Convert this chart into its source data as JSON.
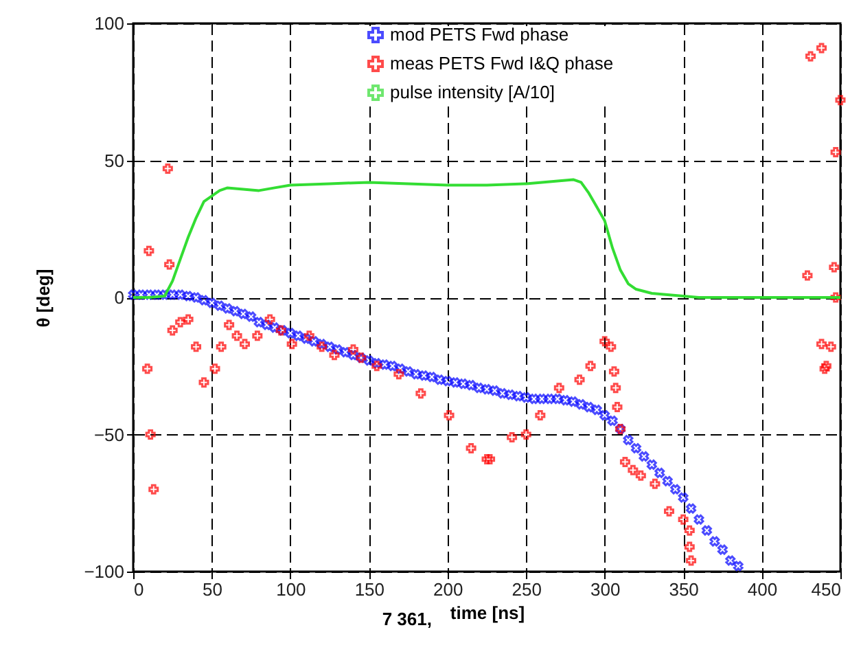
{
  "chart_data": {
    "type": "scatter",
    "xlabel": "time [ns]",
    "ylabel": "θ [deg]",
    "annotations": [
      "7    361,"
    ],
    "xlim": [
      0,
      450
    ],
    "xticks": [
      0,
      50,
      100,
      150,
      200,
      250,
      300,
      350,
      400,
      450
    ],
    "ylim": [
      -100,
      100
    ],
    "yticks": [
      -100,
      -50,
      0,
      50,
      100
    ],
    "grid": true,
    "legend": "top right",
    "series": [
      {
        "name": "mod PETS Fwd phase",
        "marker": "cross",
        "color": "#0000ff",
        "x": [
          0,
          5,
          10,
          15,
          20,
          25,
          30,
          35,
          40,
          45,
          50,
          55,
          60,
          65,
          70,
          75,
          80,
          85,
          90,
          95,
          100,
          105,
          110,
          115,
          120,
          125,
          130,
          135,
          140,
          145,
          150,
          155,
          160,
          165,
          170,
          175,
          180,
          185,
          190,
          195,
          200,
          205,
          210,
          215,
          220,
          225,
          230,
          235,
          240,
          245,
          250,
          255,
          260,
          265,
          270,
          275,
          280,
          285,
          290,
          295,
          300,
          305,
          310,
          315,
          320,
          325,
          330,
          335,
          340,
          345,
          350,
          355,
          360,
          365,
          370,
          375,
          380,
          385
        ],
        "values": [
          1,
          1,
          1,
          1,
          1,
          1,
          1,
          0.5,
          0,
          -1,
          -2,
          -3,
          -4,
          -5,
          -6,
          -7,
          -9,
          -10,
          -11,
          -12,
          -13,
          -14,
          -15,
          -16,
          -17,
          -18,
          -19,
          -20,
          -21,
          -22,
          -23,
          -24,
          -24.5,
          -25,
          -26,
          -27,
          -28,
          -28.5,
          -29,
          -30,
          -30.5,
          -31,
          -31.5,
          -32,
          -33,
          -33.5,
          -34,
          -35,
          -35.5,
          -36,
          -36.5,
          -37,
          -37,
          -37,
          -37,
          -37.5,
          -38,
          -39,
          -40,
          -41,
          -43,
          -45,
          -48,
          -52,
          -55,
          -58,
          -61,
          -64,
          -67,
          -70,
          -73,
          -77,
          -81,
          -85,
          -89,
          -92,
          -96,
          -98
        ]
      },
      {
        "name": "meas PETS Fwd I&Q phase",
        "marker": "cross",
        "color": "#ff0000",
        "x": [
          9,
          10,
          11,
          13,
          22,
          23,
          25,
          30,
          35,
          40,
          45,
          52,
          56,
          61,
          66,
          71,
          79,
          87,
          94,
          101,
          112,
          120,
          128,
          140,
          145,
          155,
          169,
          183,
          201,
          215,
          225,
          227,
          241,
          250,
          259,
          271,
          284,
          291,
          300,
          304,
          306,
          307,
          308,
          310,
          313,
          318,
          323,
          332,
          341,
          350,
          354,
          354,
          355,
          429,
          431,
          438,
          438,
          440,
          441,
          444,
          446,
          447,
          447,
          450
        ],
        "values": [
          -26,
          17,
          -50,
          -70,
          47,
          12,
          -12,
          -9,
          -8,
          -18,
          -31,
          -26,
          -18,
          -10,
          -14,
          -17,
          -14,
          -8,
          -12,
          -17,
          -14,
          -18,
          -21,
          -19,
          -22,
          -25,
          -28,
          -35,
          -43,
          -55,
          -59,
          -59,
          -51,
          -50,
          -43,
          -33,
          -30,
          -25,
          -16,
          -18,
          -27,
          -33,
          -40,
          -48,
          -60,
          -63,
          -65,
          -68,
          -78,
          -81,
          -85,
          -91,
          -96,
          8,
          88,
          91,
          -17,
          -26,
          -25,
          -18,
          11,
          53,
          0,
          72
        ]
      },
      {
        "name": "pulse intensity [A/10]",
        "type": "line",
        "color": "#33dd33",
        "x": [
          0,
          10,
          20,
          25,
          30,
          35,
          40,
          45,
          50,
          55,
          60,
          70,
          80,
          90,
          100,
          125,
          150,
          175,
          200,
          225,
          250,
          270,
          280,
          285,
          290,
          295,
          300,
          305,
          310,
          315,
          320,
          330,
          340,
          350,
          360,
          400,
          450
        ],
        "values": [
          0,
          0,
          0.5,
          6,
          14,
          22,
          29,
          35,
          37,
          39,
          40,
          39.5,
          39,
          40,
          41,
          41.5,
          42,
          41.5,
          41,
          41,
          41.5,
          42.5,
          43,
          42,
          38,
          33,
          28,
          18,
          10,
          5,
          3,
          1.5,
          1,
          0.5,
          0,
          0,
          0
        ]
      }
    ]
  }
}
